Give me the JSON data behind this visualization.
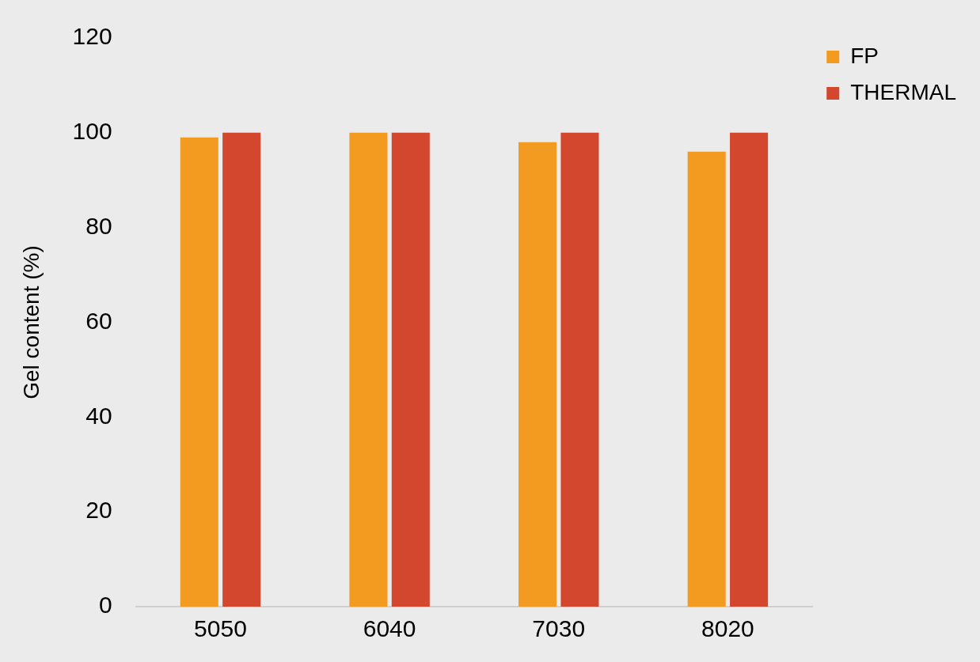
{
  "chart_data": {
    "type": "bar",
    "ylabel": "Gel content (%)",
    "categories": [
      "5050",
      "6040",
      "7030",
      "8020"
    ],
    "series": [
      {
        "name": "FP",
        "color": "#f39a21",
        "values": [
          99,
          100,
          98,
          96
        ]
      },
      {
        "name": "THERMAL",
        "color": "#d4472f",
        "values": [
          100,
          100,
          100,
          100
        ]
      }
    ],
    "ylim": [
      0,
      120
    ],
    "yticks": [
      0,
      20,
      40,
      60,
      80,
      100,
      120
    ],
    "grid": false,
    "legend": "top right"
  }
}
